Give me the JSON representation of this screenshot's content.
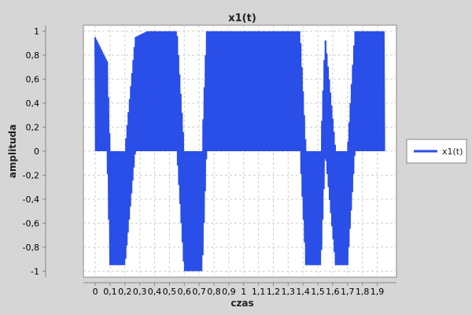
{
  "chart_data": {
    "type": "line",
    "title": "x1(t)",
    "xlabel": "czas",
    "ylabel": "amplituda",
    "xlim": [
      -0.08,
      2.03
    ],
    "ylim": [
      -1.05,
      1.05
    ],
    "grid": true,
    "legend": "right",
    "x_ticks": [
      {
        "value": 0,
        "label": "0"
      },
      {
        "value": 0.1,
        "label": "0,1"
      },
      {
        "value": 0.2,
        "label": "0,2"
      },
      {
        "value": 0.3,
        "label": "0,3"
      },
      {
        "value": 0.4,
        "label": "0,4"
      },
      {
        "value": 0.5,
        "label": "0,5"
      },
      {
        "value": 0.6,
        "label": "0,6"
      },
      {
        "value": 0.7,
        "label": "0,7"
      },
      {
        "value": 0.8,
        "label": "0,8"
      },
      {
        "value": 0.9,
        "label": "0,9"
      },
      {
        "value": 1.0,
        "label": "1"
      },
      {
        "value": 1.1,
        "label": "1,1"
      },
      {
        "value": 1.2,
        "label": "1,2"
      },
      {
        "value": 1.3,
        "label": "1,3"
      },
      {
        "value": 1.4,
        "label": "1,4"
      },
      {
        "value": 1.5,
        "label": "1,5"
      },
      {
        "value": 1.6,
        "label": "1,6"
      },
      {
        "value": 1.7,
        "label": "1,7"
      },
      {
        "value": 1.8,
        "label": "1,8"
      },
      {
        "value": 1.9,
        "label": "1,9"
      }
    ],
    "y_ticks": [
      {
        "value": 1,
        "label": "1"
      },
      {
        "value": 0.8,
        "label": "0,8"
      },
      {
        "value": 0.6,
        "label": "0,6"
      },
      {
        "value": 0.4,
        "label": "0,4"
      },
      {
        "value": 0.2,
        "label": "0,2"
      },
      {
        "value": 0,
        "label": "0"
      },
      {
        "value": -0.2,
        "label": "-0,2"
      },
      {
        "value": -0.4,
        "label": "-0,4"
      },
      {
        "value": -0.6,
        "label": "-0,6"
      },
      {
        "value": -0.8,
        "label": "-0,8"
      },
      {
        "value": -1,
        "label": "-1"
      }
    ],
    "series": [
      {
        "name": "x1(t)",
        "color": "#2a4ee8",
        "segments": [
          {
            "x": [
              0.0,
              0.1
            ],
            "sign": 1
          },
          {
            "x": [
              0.1,
              0.25
            ],
            "sign": -1
          },
          {
            "x": [
              0.25,
              0.35
            ],
            "sign": 1
          },
          {
            "x": [
              0.35,
              0.7
            ],
            "sign": 1
          },
          {
            "x": [
              0.6,
              0.75
            ],
            "sign": -1
          },
          {
            "x": [
              0.75,
              1.4
            ],
            "sign": 1
          },
          {
            "x": [
              1.4,
              1.55
            ],
            "sign": -1
          },
          {
            "x": [
              1.55,
              1.6
            ],
            "sign": 1
          },
          {
            "x": [
              1.6,
              1.7
            ],
            "sign": -1
          },
          {
            "x": [
              1.7,
              1.95
            ],
            "sign": 1
          }
        ],
        "envelope": [
          {
            "x": 0.0,
            "upper": 0.95,
            "lower": 0.0
          },
          {
            "x": 0.08,
            "upper": 0.75,
            "lower": 0.0
          },
          {
            "x": 0.1,
            "upper": 0.0,
            "lower": -0.95
          },
          {
            "x": 0.2,
            "upper": 0.0,
            "lower": -0.95
          },
          {
            "x": 0.27,
            "upper": 0.95,
            "lower": 0.0
          },
          {
            "x": 0.35,
            "upper": 1.0,
            "lower": 0.0
          },
          {
            "x": 0.55,
            "upper": 1.0,
            "lower": 0.0
          },
          {
            "x": 0.6,
            "upper": 0.0,
            "lower": -1.0
          },
          {
            "x": 0.72,
            "upper": 0.0,
            "lower": -1.0
          },
          {
            "x": 0.75,
            "upper": 1.0,
            "lower": 0.0
          },
          {
            "x": 1.38,
            "upper": 1.0,
            "lower": 0.0
          },
          {
            "x": 1.42,
            "upper": 0.0,
            "lower": -0.95
          },
          {
            "x": 1.52,
            "upper": 0.0,
            "lower": -0.95
          },
          {
            "x": 1.55,
            "upper": 0.95,
            "lower": 0.0
          },
          {
            "x": 1.62,
            "upper": 0.0,
            "lower": -0.95
          },
          {
            "x": 1.7,
            "upper": 0.0,
            "lower": -0.95
          },
          {
            "x": 1.75,
            "upper": 1.0,
            "lower": 0.0
          },
          {
            "x": 1.95,
            "upper": 1.0,
            "lower": 0.0
          }
        ]
      }
    ]
  }
}
